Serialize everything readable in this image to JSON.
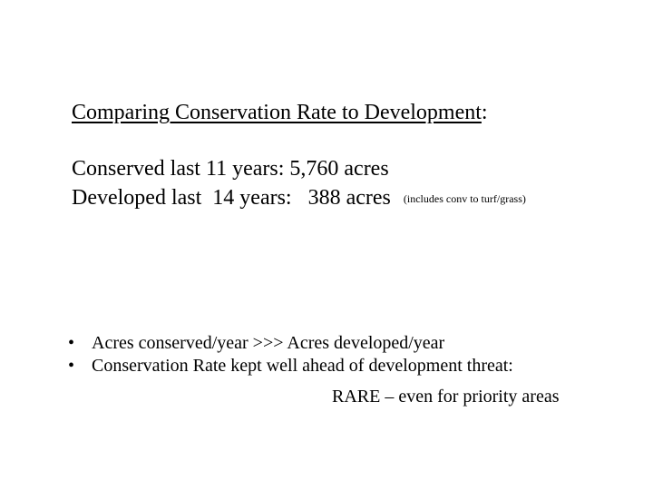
{
  "title": {
    "underlined_text": "Comparing Conservation Rate to Development",
    "trailing_text": ":"
  },
  "stats": {
    "conserved": "Conserved last 11 years: 5,760 acres",
    "developed": "Developed last  14 years:   388 acres",
    "developed_note": "(includes conv to turf/grass)"
  },
  "bullets": {
    "marker": "•",
    "items": [
      "Acres conserved/year >>> Acres developed/year",
      "Conservation Rate kept well ahead of development threat:"
    ],
    "continuation": "RARE – even for priority areas"
  }
}
